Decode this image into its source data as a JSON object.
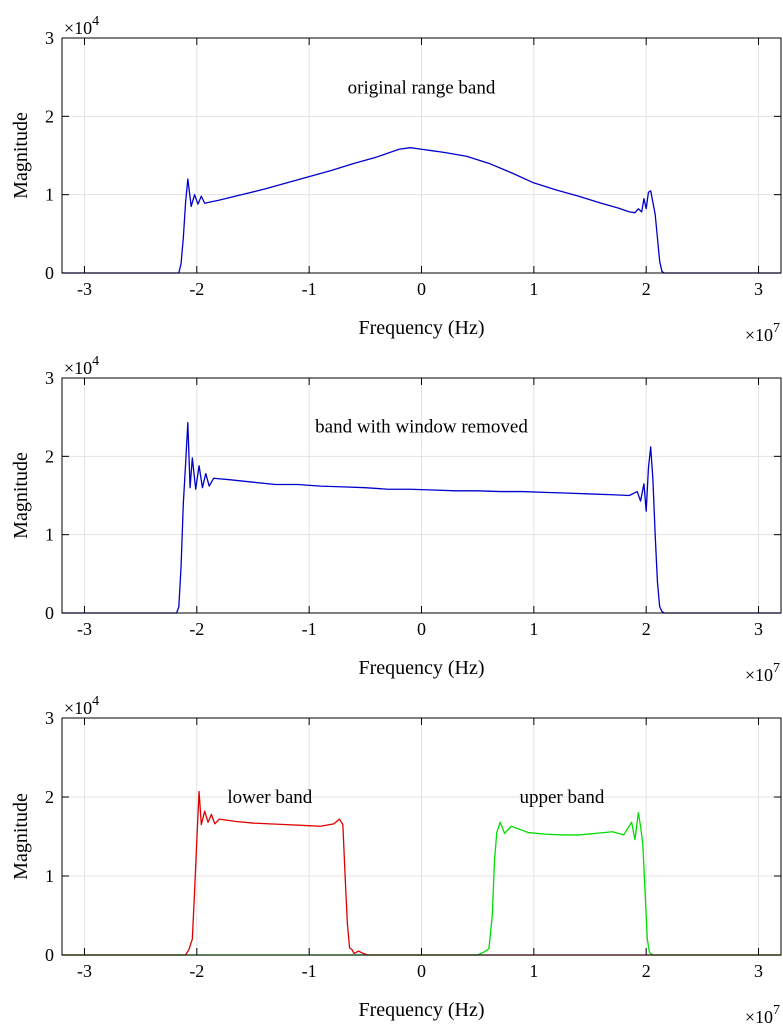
{
  "chart_data": [
    {
      "type": "line",
      "xlabel": "Frequency (Hz)",
      "ylabel": "Magnitude",
      "xlim": [
        -32000000,
        32000000
      ],
      "ylim": [
        0,
        30000
      ],
      "x_ticks": [
        -30000000,
        -20000000,
        -10000000,
        0,
        10000000,
        20000000,
        30000000
      ],
      "x_tick_labels": [
        "-3",
        "-2",
        "-1",
        "0",
        "1",
        "2",
        "3"
      ],
      "y_ticks": [
        0,
        10000,
        20000,
        30000
      ],
      "y_tick_labels": [
        "0",
        "1",
        "2",
        "3"
      ],
      "x_exponent": {
        "base": "×10",
        "power": "7"
      },
      "y_exponent": {
        "base": "×10",
        "power": "4"
      },
      "grid": true,
      "annotations": [
        {
          "text": "original range band",
          "x": 0,
          "y": 23700
        }
      ],
      "series": [
        {
          "color": "#0000cc",
          "x": [
            -32000000,
            -21600000,
            -21400000,
            -21200000,
            -21000000,
            -20800000,
            -20500000,
            -20200000,
            -19900000,
            -19600000,
            -19300000,
            -19000000,
            -18000000,
            -16000000,
            -14000000,
            -12000000,
            -10000000,
            -8000000,
            -6000000,
            -4000000,
            -2000000,
            -1000000,
            0,
            1000000,
            2000000,
            4000000,
            6000000,
            8000000,
            10000000,
            12000000,
            14000000,
            16000000,
            17500000,
            18500000,
            19000000,
            19300000,
            19600000,
            19800000,
            20000000,
            20200000,
            20400000,
            20600000,
            20800000,
            21000000,
            21200000,
            21400000,
            21600000,
            32000000
          ],
          "y": [
            0,
            0,
            1200,
            4500,
            9000,
            12000,
            8500,
            10000,
            8800,
            9800,
            8900,
            9000,
            9300,
            10000,
            10700,
            11500,
            12300,
            13100,
            14000,
            14800,
            15800,
            16000,
            15800,
            15600,
            15400,
            14900,
            14000,
            12800,
            11500,
            10600,
            9800,
            8900,
            8300,
            7800,
            7700,
            8200,
            7800,
            9500,
            8200,
            10300,
            10500,
            9000,
            7500,
            4500,
            1500,
            200,
            0,
            0
          ]
        }
      ]
    },
    {
      "type": "line",
      "xlabel": "Frequency (Hz)",
      "ylabel": "Magnitude",
      "xlim": [
        -32000000,
        32000000
      ],
      "ylim": [
        0,
        30000
      ],
      "x_ticks": [
        -30000000,
        -20000000,
        -10000000,
        0,
        10000000,
        20000000,
        30000000
      ],
      "x_tick_labels": [
        "-3",
        "-2",
        "-1",
        "0",
        "1",
        "2",
        "3"
      ],
      "y_ticks": [
        0,
        10000,
        20000,
        30000
      ],
      "y_tick_labels": [
        "0",
        "1",
        "2",
        "3"
      ],
      "x_exponent": {
        "base": "×10",
        "power": "7"
      },
      "y_exponent": {
        "base": "×10",
        "power": "4"
      },
      "grid": true,
      "annotations": [
        {
          "text": "band with window removed",
          "x": 0,
          "y": 23800
        }
      ],
      "series": [
        {
          "color": "#0000cc",
          "x": [
            -32000000,
            -21800000,
            -21600000,
            -21400000,
            -21200000,
            -21000000,
            -20800000,
            -20600000,
            -20400000,
            -20100000,
            -19800000,
            -19500000,
            -19200000,
            -18900000,
            -18500000,
            -17000000,
            -15000000,
            -13000000,
            -11000000,
            -9000000,
            -7000000,
            -5000000,
            -3000000,
            -1000000,
            1000000,
            3000000,
            5000000,
            7000000,
            9000000,
            11000000,
            13000000,
            15000000,
            17000000,
            18500000,
            19200000,
            19500000,
            19800000,
            20000000,
            20200000,
            20400000,
            20600000,
            20800000,
            21000000,
            21200000,
            21400000,
            21600000,
            21800000,
            32000000
          ],
          "y": [
            0,
            0,
            800,
            6000,
            14000,
            19000,
            24300,
            16000,
            19800,
            15800,
            18800,
            16000,
            17800,
            16200,
            17200,
            17000,
            16700,
            16400,
            16400,
            16200,
            16100,
            16000,
            15800,
            15800,
            15700,
            15600,
            15600,
            15500,
            15500,
            15400,
            15300,
            15200,
            15100,
            15000,
            15500,
            14300,
            16500,
            13000,
            18500,
            21200,
            17000,
            10000,
            4000,
            800,
            200,
            0,
            0,
            0
          ]
        }
      ]
    },
    {
      "type": "line",
      "xlabel": "Frequency (Hz)",
      "ylabel": "Magnitude",
      "xlim": [
        -32000000,
        32000000
      ],
      "ylim": [
        0,
        30000
      ],
      "x_ticks": [
        -30000000,
        -20000000,
        -10000000,
        0,
        10000000,
        20000000,
        30000000
      ],
      "x_tick_labels": [
        "-3",
        "-2",
        "-1",
        "0",
        "1",
        "2",
        "3"
      ],
      "y_ticks": [
        0,
        10000,
        20000,
        30000
      ],
      "y_tick_labels": [
        "0",
        "1",
        "2",
        "3"
      ],
      "x_exponent": {
        "base": "×10",
        "power": "7"
      },
      "y_exponent": {
        "base": "×10",
        "power": "4"
      },
      "grid": true,
      "annotations": [
        {
          "text": "lower band",
          "x": -13500000,
          "y": 20000
        },
        {
          "text": "upper band",
          "x": 12500000,
          "y": 20000
        }
      ],
      "series": [
        {
          "color": "#dd0000",
          "x": [
            -32000000,
            -21000000,
            -20700000,
            -20400000,
            -20200000,
            -20000000,
            -19800000,
            -19600000,
            -19300000,
            -19000000,
            -18700000,
            -18400000,
            -18000000,
            -16500000,
            -15000000,
            -13500000,
            -12000000,
            -10500000,
            -9000000,
            -7800000,
            -7300000,
            -7000000,
            -6800000,
            -6600000,
            -6400000,
            -6200000,
            -6000000,
            -5600000,
            -5200000,
            -4800000,
            32000000
          ],
          "y": [
            0,
            0,
            700,
            2000,
            8000,
            14500,
            20700,
            16500,
            18200,
            16800,
            17800,
            16600,
            17200,
            16900,
            16700,
            16600,
            16500,
            16400,
            16300,
            16600,
            17200,
            16500,
            10000,
            4000,
            900,
            700,
            200,
            500,
            200,
            0,
            0
          ]
        },
        {
          "color": "#00dd00",
          "x": [
            -32000000,
            5000000,
            5600000,
            6000000,
            6300000,
            6500000,
            6700000,
            7000000,
            7400000,
            8000000,
            9500000,
            11000000,
            12500000,
            14000000,
            15500000,
            17000000,
            18000000,
            18700000,
            19000000,
            19300000,
            19500000,
            19700000,
            19900000,
            20100000,
            20300000,
            20600000,
            32000000
          ],
          "y": [
            0,
            0,
            400,
            800,
            5000,
            12000,
            15500,
            16800,
            15400,
            16300,
            15500,
            15300,
            15200,
            15200,
            15400,
            15600,
            15200,
            16800,
            14600,
            18000,
            16300,
            14000,
            8000,
            2000,
            300,
            0,
            0
          ]
        }
      ]
    }
  ]
}
